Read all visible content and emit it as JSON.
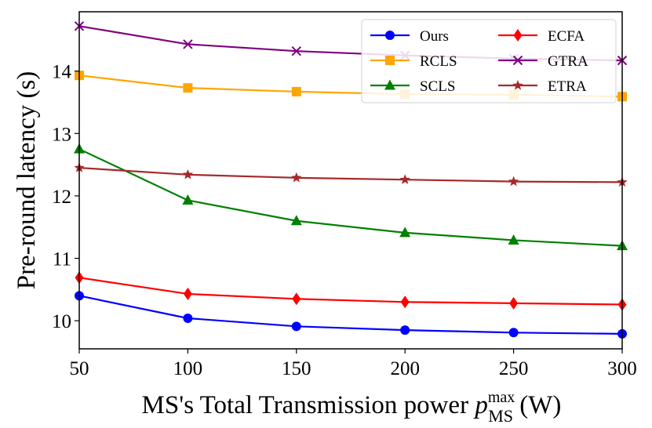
{
  "chart_data": {
    "type": "line",
    "xlabel_main": "MS's Total Transmission power ",
    "xlabel_var": "p",
    "xlabel_sup": "max",
    "xlabel_sub": "MS",
    "xlabel_unit": " (W)",
    "ylabel": "Pre-round latency (s)",
    "x": [
      50,
      100,
      150,
      200,
      250,
      300
    ],
    "xlim": [
      50,
      300
    ],
    "ylim": [
      9.55,
      14.95
    ],
    "xticks": [
      "50",
      "100",
      "150",
      "200",
      "250",
      "300"
    ],
    "yticks": [
      "10",
      "11",
      "12",
      "13",
      "14"
    ],
    "grid": false,
    "legend_position": "top-right",
    "series": [
      {
        "name": "Ours",
        "color": "#0000ff",
        "marker": "circle",
        "values": [
          10.4,
          10.04,
          9.91,
          9.85,
          9.81,
          9.79
        ]
      },
      {
        "name": "RCLS",
        "color": "#ffa500",
        "marker": "square",
        "values": [
          13.93,
          13.73,
          13.67,
          13.63,
          13.62,
          13.59
        ]
      },
      {
        "name": "SCLS",
        "color": "#008000",
        "marker": "triangle",
        "values": [
          12.75,
          11.93,
          11.6,
          11.41,
          11.29,
          11.2
        ]
      },
      {
        "name": "ECFA",
        "color": "#ff0000",
        "marker": "diamond",
        "values": [
          10.69,
          10.43,
          10.35,
          10.3,
          10.28,
          10.26
        ]
      },
      {
        "name": "GTRA",
        "color": "#800080",
        "marker": "x",
        "values": [
          14.72,
          14.43,
          14.32,
          14.25,
          14.2,
          14.17
        ]
      },
      {
        "name": "ETRA",
        "color": "#a52a2a",
        "marker": "star",
        "values": [
          12.45,
          12.34,
          12.29,
          12.26,
          12.23,
          12.22
        ]
      }
    ]
  }
}
